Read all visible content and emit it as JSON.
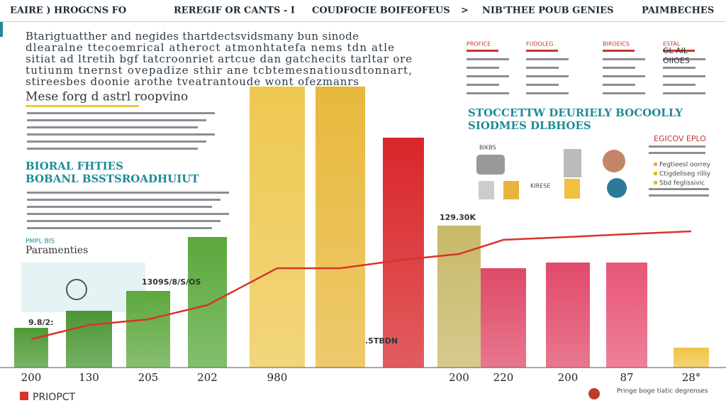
{
  "header": {
    "items": [
      "EAIRE ) HROGCNS FO",
      "REREGIF OR CANTS - I",
      "COUDFOCIE BOIFEOFEUS",
      ">",
      "NIB'THEE POUB GENIES",
      "PAIMBECHES"
    ]
  },
  "intro": {
    "paragraph": [
      "Btarigtuatther and negides thartdectsvidsmany bun sinode",
      "dlearalne ttecoemrical atheroct atmonhtatefa nems tdn atle",
      "sitiat ad ltretih bgf tatcroonriet artcue dan gatchecits tarltar ore",
      "tutiunm tnernst ovepadize sthir ane tcbtemesnatiousdtonnart,",
      "stireesbes doonie arothe tveatrantoude wont ofezmanrs"
    ],
    "heading": "Mese forg d astrl roopvino"
  },
  "section": {
    "title": "BIORAL FHTIES",
    "subtitle": "BOBANL BSSTSROADHUIUT",
    "label_small": "PMPL BIS",
    "label": "Paramenties"
  },
  "top_table": {
    "headers": [
      "PROFICE",
      "FUDOLEG",
      "BIROEICS",
      "ESTAL"
    ],
    "extra": [
      "GL AIL",
      "OIIOES"
    ]
  },
  "right_title": {
    "line1": "STOCCETTW DEURIELY BOCOOLLY",
    "line2": "SIODMES DLBHOES"
  },
  "icons": {
    "label": "BIKBS",
    "caption": "KIRESE"
  },
  "side_panel": {
    "title": "EGICOV EPLO",
    "items": [
      "Fegtieesl oorrey",
      "Ctigdeliseg rilliy",
      "Sbd feglissivic"
    ]
  },
  "footer": {
    "brand": "PRIOPCT",
    "note": "Pringe boge tiatic degrenses"
  },
  "chart_data": {
    "type": "bar",
    "categories": [
      "200",
      "130",
      "205",
      "202",
      "980",
      null,
      null,
      "200",
      "220",
      "200",
      "87",
      "28°"
    ],
    "values": [
      14,
      20,
      27,
      46,
      99,
      99,
      81,
      50,
      35,
      37,
      37,
      7
    ],
    "colors": [
      "#4f9a35",
      "#4a9632",
      "#5ea83e",
      "#5aa83c",
      "#eec850",
      "#e8b83c",
      "#d8262a",
      "#c8b868",
      "#de4a68",
      "#e04a6a",
      "#e85676",
      "#f0c448"
    ],
    "line_values": [
      10,
      15,
      17,
      22,
      35,
      35,
      38,
      40,
      45,
      46,
      47,
      48
    ],
    "line_color": "#d8342a",
    "ylim": [
      0,
      100
    ],
    "annotations": [
      "9.8/2:",
      "1309S/8/S/OS",
      "129.30K",
      ".5TBDN"
    ]
  }
}
